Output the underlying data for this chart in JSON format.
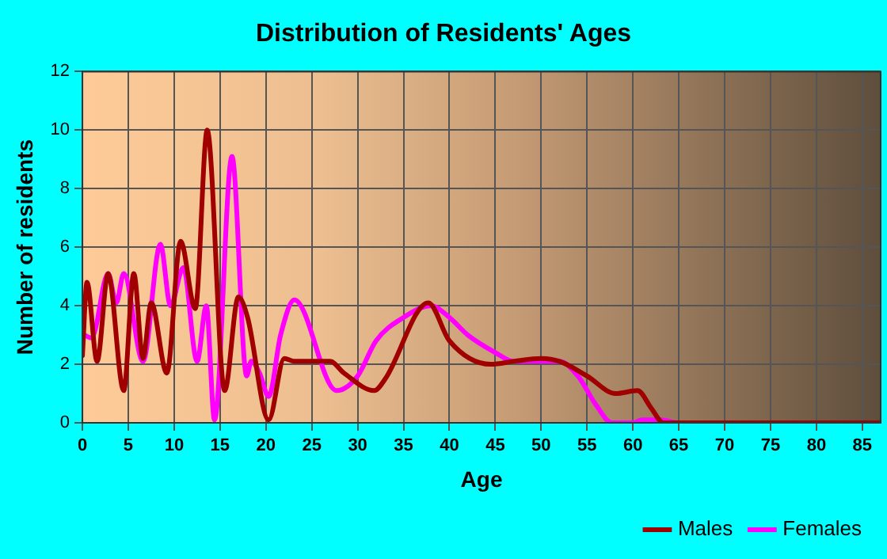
{
  "chart_data": {
    "type": "line",
    "title": "Distribution of Residents' Ages",
    "xlabel": "Age",
    "ylabel": "Number of residents",
    "xlim": [
      0,
      87
    ],
    "xticks": [
      0,
      5,
      10,
      15,
      20,
      25,
      30,
      35,
      40,
      45,
      50,
      55,
      60,
      65,
      70,
      75,
      80,
      85
    ],
    "ylim": [
      0,
      12
    ],
    "yticks": [
      0,
      2,
      4,
      6,
      8,
      10,
      12
    ],
    "grid": true,
    "legend": "bottom right",
    "marker": "none",
    "line_style": "solid",
    "series": [
      {
        "name": "Males",
        "color": "#a00000",
        "x": [
          0,
          0.5,
          1.6,
          2.8,
          4.5,
          5.6,
          6.6,
          7.5,
          9.2,
          10.7,
          12.3,
          13.6,
          15.5,
          17,
          18,
          20.3,
          22,
          23.1,
          25,
          27,
          28.5,
          31.8,
          33,
          37.7,
          40,
          44.5,
          47,
          50,
          52,
          55,
          58.1,
          60.5,
          62,
          63.3,
          87
        ],
        "values": [
          2.3,
          4.8,
          2.1,
          5.1,
          1.1,
          5.1,
          2.2,
          4.1,
          1.7,
          6.2,
          3.9,
          10,
          1.1,
          4.3,
          3.6,
          0.1,
          2.2,
          2.1,
          2.1,
          2.1,
          1.7,
          1.1,
          1.5,
          4.1,
          2.8,
          2,
          2.1,
          2.2,
          2.1,
          1.6,
          1,
          1.1,
          0.5,
          0,
          0
        ]
      },
      {
        "name": "Females",
        "color": "#ff00ff",
        "x": [
          0.2,
          1,
          2.8,
          3.7,
          4.5,
          6.6,
          8.5,
          9.6,
          11,
          12.5,
          13.5,
          14.4,
          16.3,
          17.9,
          18.4,
          19.3,
          20.3,
          21.6,
          23.1,
          27.7,
          30,
          32,
          35,
          38,
          40,
          42,
          45,
          47,
          50,
          52,
          54,
          56,
          57.7,
          60,
          61,
          63,
          65,
          87
        ],
        "values": [
          3,
          2.9,
          5.1,
          4.1,
          5.1,
          2.1,
          6.1,
          4,
          5.3,
          2.1,
          4,
          0.1,
          9.1,
          1.6,
          2.1,
          1.7,
          0.9,
          3,
          4.2,
          1.1,
          1.6,
          2.8,
          3.6,
          4,
          3.6,
          3,
          2.4,
          2.1,
          2.1,
          2.1,
          1.6,
          0.6,
          0,
          0,
          0.1,
          0.1,
          0,
          0
        ]
      }
    ]
  }
}
